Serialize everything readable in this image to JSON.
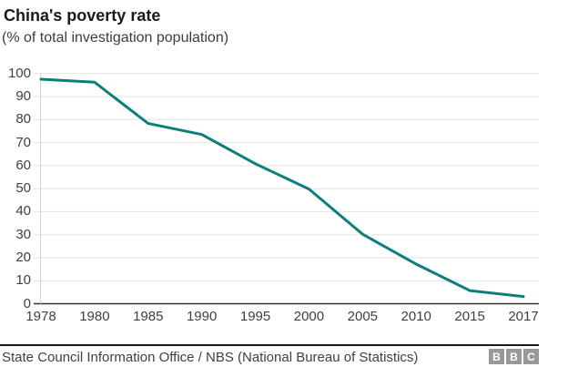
{
  "header": {
    "title": "China's poverty rate",
    "subtitle": "(% of total investigation population)"
  },
  "chart_data": {
    "type": "line",
    "title": "China's poverty rate",
    "subtitle": "(% of total investigation population)",
    "categories": [
      "1978",
      "1980",
      "1985",
      "1990",
      "1995",
      "2000",
      "2005",
      "2010",
      "2015",
      "2017"
    ],
    "values": [
      97.5,
      96.2,
      78.3,
      73.5,
      60.8,
      49.8,
      30.2,
      17.2,
      5.7,
      3.1
    ],
    "xlabel": "",
    "ylabel": "",
    "ylim": [
      0,
      100
    ],
    "yticks": [
      0,
      10,
      20,
      30,
      40,
      50,
      60,
      70,
      80,
      90,
      100
    ],
    "grid": true,
    "legend": "none",
    "line_color": "#0d7e7a",
    "gridline_color": "#e2e2e2",
    "zero_line_color": "#333333",
    "axis_border_color": "#d4d4d4"
  },
  "footer": {
    "source": "State Council Information Office / NBS (National Bureau of Statistics)",
    "logo_letters": [
      "B",
      "B",
      "C"
    ],
    "logo_name": "bbc-logo"
  }
}
